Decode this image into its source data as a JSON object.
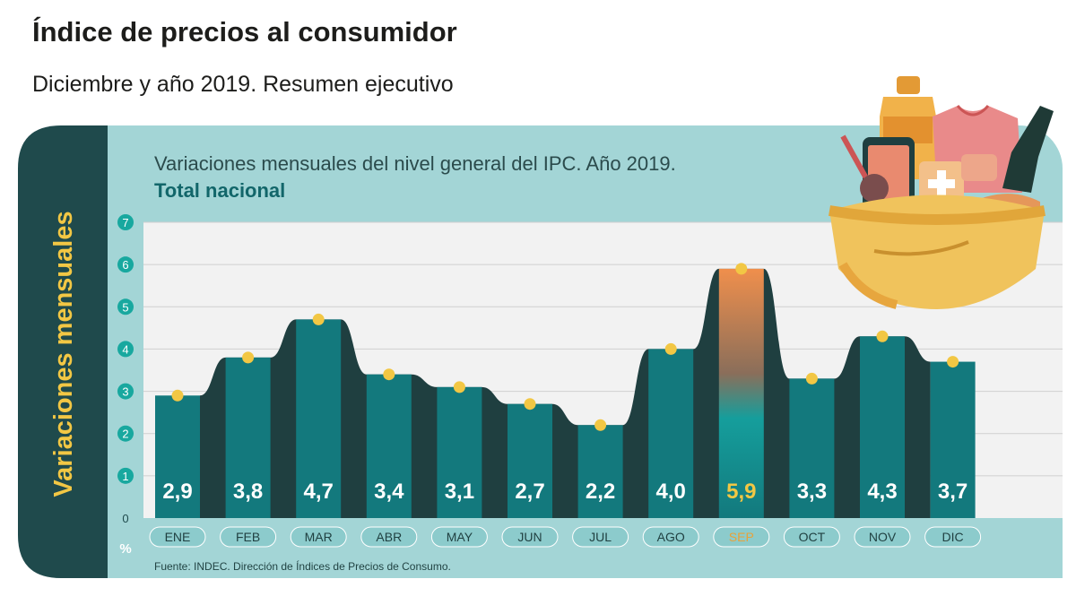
{
  "header": {
    "title": "Índice de precios al consumidor",
    "subtitle": "Diciembre y año 2019. Resumen ejecutivo"
  },
  "colors": {
    "panel": "#a3d5d6",
    "panel_dark": "#1f4a4c",
    "bar": "#13797d",
    "gap": "#1f3f40",
    "highlight_top": "#f08f4c",
    "highlight_bottom": "#14878a",
    "marker": "#f2c744",
    "value_text": "#ffffff",
    "highlight_text": "#f2c744",
    "month_pill": "#a3d5d6",
    "axis_label": "#f2c744"
  },
  "chart_data": {
    "type": "bar",
    "title": "Variaciones mensuales del nivel general del IPC. Año 2019.",
    "subtitle": "Total nacional",
    "ylabel": "Variaciones mensuales",
    "yunit": "%",
    "ylim": [
      0,
      7
    ],
    "yticks": [
      "0",
      "1",
      "2",
      "3",
      "4",
      "5",
      "6",
      "7"
    ],
    "categories": [
      "ENE",
      "FEB",
      "MAR",
      "ABR",
      "MAY",
      "JUN",
      "JUL",
      "AGO",
      "SEP",
      "OCT",
      "NOV",
      "DIC"
    ],
    "values": [
      2.9,
      3.8,
      4.7,
      3.4,
      3.1,
      2.7,
      2.2,
      4.0,
      5.9,
      3.3,
      4.3,
      3.7
    ],
    "value_labels": [
      "2,9",
      "3,8",
      "4,7",
      "3,4",
      "3,1",
      "2,7",
      "2,2",
      "4,0",
      "5,9",
      "3,3",
      "4,3",
      "3,7"
    ],
    "highlight_index": 8,
    "grid": true,
    "source": "Fuente: INDEC. Dirección de Índices de Precios de Consumo."
  },
  "illustration": {
    "name": "shopping-basket-icon"
  }
}
